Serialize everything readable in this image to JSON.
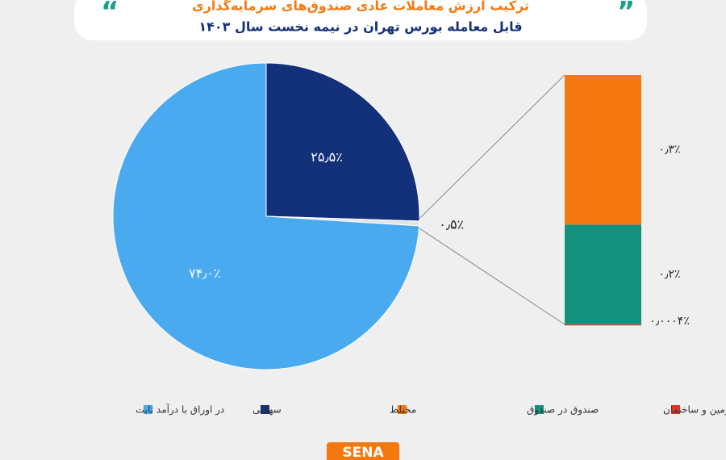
{
  "title": "ترکیب ارزش معاملات عادی صندوق‌های سرمایه‌گذاری",
  "subtitle": "قابل معامله بورس تهران در نیمه نخست سال ۱۴۰۳",
  "logo": "SENA",
  "chart_data": [
    {
      "type": "pie",
      "categories": [
        "سهامی",
        null,
        "در اوراق با درآمد ثابت"
      ],
      "values": [
        25.5,
        0.5,
        74.0
      ],
      "value_labels": [
        "۲۵٫۵٪",
        "۰٫۵٪",
        "۷۴٫۰٪"
      ],
      "colors": [
        "#13307a",
        "#e4e4e4",
        "#4aaaf0"
      ]
    },
    {
      "type": "bar",
      "stacked": true,
      "series": [
        {
          "name": "زمین و ساختمان",
          "color": "#e53525",
          "values": [
            0.0004
          ],
          "value_labels": [
            "۰٫۰۰۰۴٪"
          ]
        },
        {
          "name": "صندوق در صندوق",
          "color": "#13917e",
          "values": [
            0.2
          ],
          "value_labels": [
            "۰٫۲٪"
          ]
        },
        {
          "name": "مختلط",
          "color": "#f5780f",
          "values": [
            0.3
          ],
          "value_labels": [
            "۰٫۳٪"
          ]
        }
      ]
    }
  ]
}
